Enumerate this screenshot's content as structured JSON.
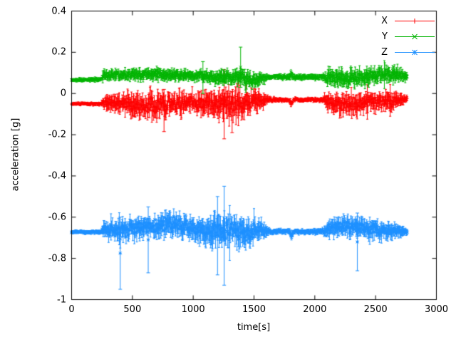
{
  "chart_data": {
    "type": "scatter",
    "style": "yerrorbars",
    "title": "",
    "xlabel": "time[s]",
    "ylabel": "acceleration [g]",
    "xlim": [
      0,
      3000
    ],
    "ylim": [
      -1,
      0.4
    ],
    "xticks": [
      0,
      500,
      1000,
      1500,
      2000,
      2500,
      3000
    ],
    "yticks": [
      -1,
      -0.8,
      -0.6,
      -0.4,
      -0.2,
      0,
      0.2,
      0.4
    ],
    "grid": false,
    "legend_position": "top-right",
    "sample_step": 4,
    "t_end": 2760,
    "series": [
      {
        "name": "X",
        "color": "#ff0000",
        "marker": "plus",
        "baseline": -0.05,
        "envelope": [
          [
            0,
            -0.05,
            0.01
          ],
          [
            245,
            -0.05,
            0.012
          ],
          [
            265,
            -0.045,
            0.045
          ],
          [
            400,
            -0.05,
            0.06
          ],
          [
            550,
            -0.06,
            0.075
          ],
          [
            700,
            -0.055,
            0.08
          ],
          [
            850,
            -0.05,
            0.07
          ],
          [
            1000,
            -0.045,
            0.06
          ],
          [
            1150,
            -0.055,
            0.08
          ],
          [
            1280,
            -0.06,
            0.1
          ],
          [
            1400,
            -0.05,
            0.08
          ],
          [
            1550,
            -0.04,
            0.06
          ],
          [
            1620,
            -0.03,
            0.02
          ],
          [
            1700,
            -0.03,
            0.013
          ],
          [
            1790,
            -0.03,
            0.013
          ],
          [
            1805,
            -0.05,
            0.035
          ],
          [
            1825,
            -0.03,
            0.013
          ],
          [
            2060,
            -0.03,
            0.013
          ],
          [
            2110,
            -0.045,
            0.06
          ],
          [
            2250,
            -0.05,
            0.07
          ],
          [
            2400,
            -0.045,
            0.065
          ],
          [
            2550,
            -0.04,
            0.06
          ],
          [
            2680,
            -0.035,
            0.05
          ],
          [
            2760,
            -0.025,
            0.02
          ]
        ],
        "outliers": [
          [
            1255,
            -0.22,
            0.115
          ],
          [
            760,
            -0.185,
            0.02
          ],
          [
            1320,
            -0.19,
            0.01
          ]
        ]
      },
      {
        "name": "Y",
        "color": "#00b400",
        "marker": "cross",
        "baseline": 0.08,
        "envelope": [
          [
            0,
            0.065,
            0.01
          ],
          [
            245,
            0.068,
            0.012
          ],
          [
            265,
            0.09,
            0.03
          ],
          [
            450,
            0.09,
            0.032
          ],
          [
            650,
            0.095,
            0.035
          ],
          [
            850,
            0.09,
            0.035
          ],
          [
            1050,
            0.085,
            0.03
          ],
          [
            1250,
            0.075,
            0.045
          ],
          [
            1380,
            0.08,
            0.05
          ],
          [
            1450,
            0.065,
            0.05
          ],
          [
            1560,
            0.07,
            0.04
          ],
          [
            1620,
            0.08,
            0.016
          ],
          [
            1790,
            0.08,
            0.016
          ],
          [
            1805,
            0.09,
            0.03
          ],
          [
            1825,
            0.08,
            0.016
          ],
          [
            2060,
            0.08,
            0.016
          ],
          [
            2110,
            0.08,
            0.05
          ],
          [
            2250,
            0.07,
            0.06
          ],
          [
            2400,
            0.08,
            0.055
          ],
          [
            2550,
            0.09,
            0.05
          ],
          [
            2680,
            0.09,
            0.05
          ],
          [
            2760,
            0.08,
            0.025
          ]
        ],
        "outliers": [
          [
            1390,
            0.03,
            0.225
          ],
          [
            1080,
            0.0,
            0.155
          ]
        ]
      },
      {
        "name": "Z",
        "color": "#1e90ff",
        "marker": "star",
        "baseline": -0.67,
        "envelope": [
          [
            0,
            -0.672,
            0.01
          ],
          [
            245,
            -0.672,
            0.013
          ],
          [
            265,
            -0.66,
            0.045
          ],
          [
            400,
            -0.67,
            0.07
          ],
          [
            550,
            -0.65,
            0.065
          ],
          [
            700,
            -0.64,
            0.07
          ],
          [
            850,
            -0.63,
            0.075
          ],
          [
            1000,
            -0.66,
            0.065
          ],
          [
            1150,
            -0.67,
            0.09
          ],
          [
            1300,
            -0.66,
            0.1
          ],
          [
            1450,
            -0.67,
            0.09
          ],
          [
            1570,
            -0.66,
            0.06
          ],
          [
            1630,
            -0.67,
            0.016
          ],
          [
            1790,
            -0.67,
            0.016
          ],
          [
            1805,
            -0.69,
            0.04
          ],
          [
            1825,
            -0.67,
            0.016
          ],
          [
            2060,
            -0.67,
            0.016
          ],
          [
            2110,
            -0.66,
            0.055
          ],
          [
            2250,
            -0.645,
            0.06
          ],
          [
            2400,
            -0.655,
            0.06
          ],
          [
            2550,
            -0.66,
            0.055
          ],
          [
            2680,
            -0.67,
            0.045
          ],
          [
            2760,
            -0.67,
            0.018
          ]
        ],
        "outliers": [
          [
            400,
            -0.95,
            -0.6
          ],
          [
            630,
            -0.87,
            -0.55
          ],
          [
            1200,
            -0.88,
            -0.5
          ],
          [
            1255,
            -0.93,
            -0.45
          ],
          [
            2350,
            -0.86,
            -0.58
          ]
        ]
      }
    ],
    "legend_entries": [
      "X",
      "Y",
      "Z"
    ]
  }
}
